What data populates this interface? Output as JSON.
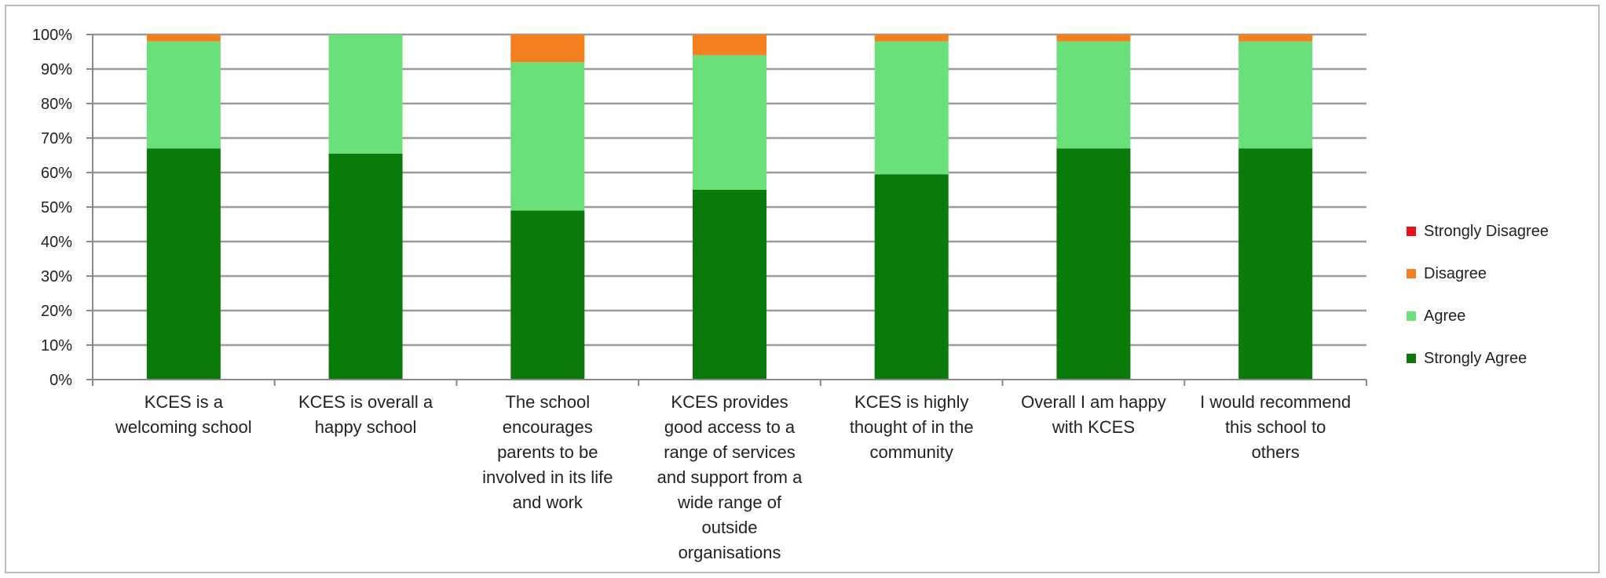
{
  "chart_data": {
    "type": "bar",
    "stacked": true,
    "categories": [
      "KCES is a welcoming school",
      "KCES is overall a happy school",
      "The school encourages parents to be involved in its life and work",
      "KCES provides good access to a range of services and support from a wide range of outside organisations",
      "KCES is highly thought of in the community",
      "Overall I am happy with KCES",
      "I would recommend this school to others"
    ],
    "category_lines": [
      [
        "KCES is a",
        "welcoming school"
      ],
      [
        "KCES is overall a",
        "happy school"
      ],
      [
        "The school",
        "encourages",
        "parents to be",
        "involved in its life",
        "and work"
      ],
      [
        "KCES provides",
        "good access to a",
        "range of services",
        "and support from a",
        "wide range of",
        "outside",
        "organisations"
      ],
      [
        "KCES is highly",
        "thought of in the",
        "community"
      ],
      [
        "Overall I am happy",
        "with KCES"
      ],
      [
        "I would recommend",
        "this school to",
        "others"
      ]
    ],
    "series": [
      {
        "name": "Strongly Agree",
        "color": "#0a7a0a",
        "values": [
          67,
          65.5,
          49,
          55,
          59.5,
          67,
          67
        ]
      },
      {
        "name": "Agree",
        "color": "#6ae07a",
        "values": [
          31,
          34.5,
          43,
          39,
          38.5,
          31,
          31
        ]
      },
      {
        "name": "Disagree",
        "color": "#f2801f",
        "values": [
          2,
          0,
          8,
          6,
          2,
          2,
          2
        ]
      },
      {
        "name": "Strongly Disagree",
        "color": "#e8101a",
        "values": [
          0,
          0,
          0,
          0,
          0,
          0,
          0
        ]
      }
    ],
    "legend_order": [
      "Strongly Disagree",
      "Disagree",
      "Agree",
      "Strongly Agree"
    ],
    "y_ticks": [
      "0%",
      "10%",
      "20%",
      "30%",
      "40%",
      "50%",
      "60%",
      "70%",
      "80%",
      "90%",
      "100%"
    ],
    "ylim": [
      0,
      100
    ],
    "grid": true,
    "legend_position": "right"
  }
}
